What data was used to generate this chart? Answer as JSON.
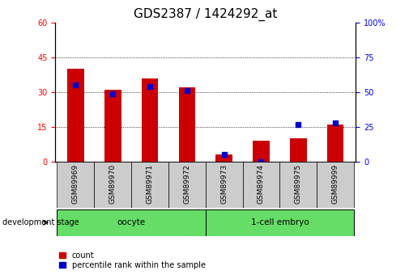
{
  "title": "GDS2387 / 1424292_at",
  "samples": [
    "GSM89969",
    "GSM89970",
    "GSM89971",
    "GSM89972",
    "GSM89973",
    "GSM89974",
    "GSM89975",
    "GSM89999"
  ],
  "count_values": [
    40,
    31,
    36,
    32,
    3,
    9,
    10,
    16
  ],
  "percentile_values": [
    55,
    49,
    54,
    51,
    5,
    0,
    27,
    28
  ],
  "left_ylim": [
    0,
    60
  ],
  "right_ylim": [
    0,
    100
  ],
  "left_yticks": [
    0,
    15,
    30,
    45,
    60
  ],
  "right_yticks": [
    0,
    25,
    50,
    75,
    100
  ],
  "bar_color": "#cc0000",
  "dot_color": "#0000cc",
  "groups": [
    {
      "label": "oocyte",
      "indices": [
        0,
        1,
        2,
        3
      ],
      "color": "#66dd66"
    },
    {
      "label": "1-cell embryo",
      "indices": [
        4,
        5,
        6,
        7
      ],
      "color": "#66dd66"
    }
  ],
  "group_label": "development stage",
  "tick_area_color": "#cccccc",
  "legend_count_label": "count",
  "legend_pct_label": "percentile rank within the sample",
  "title_fontsize": 11,
  "tick_fontsize": 7,
  "bar_width": 0.45
}
